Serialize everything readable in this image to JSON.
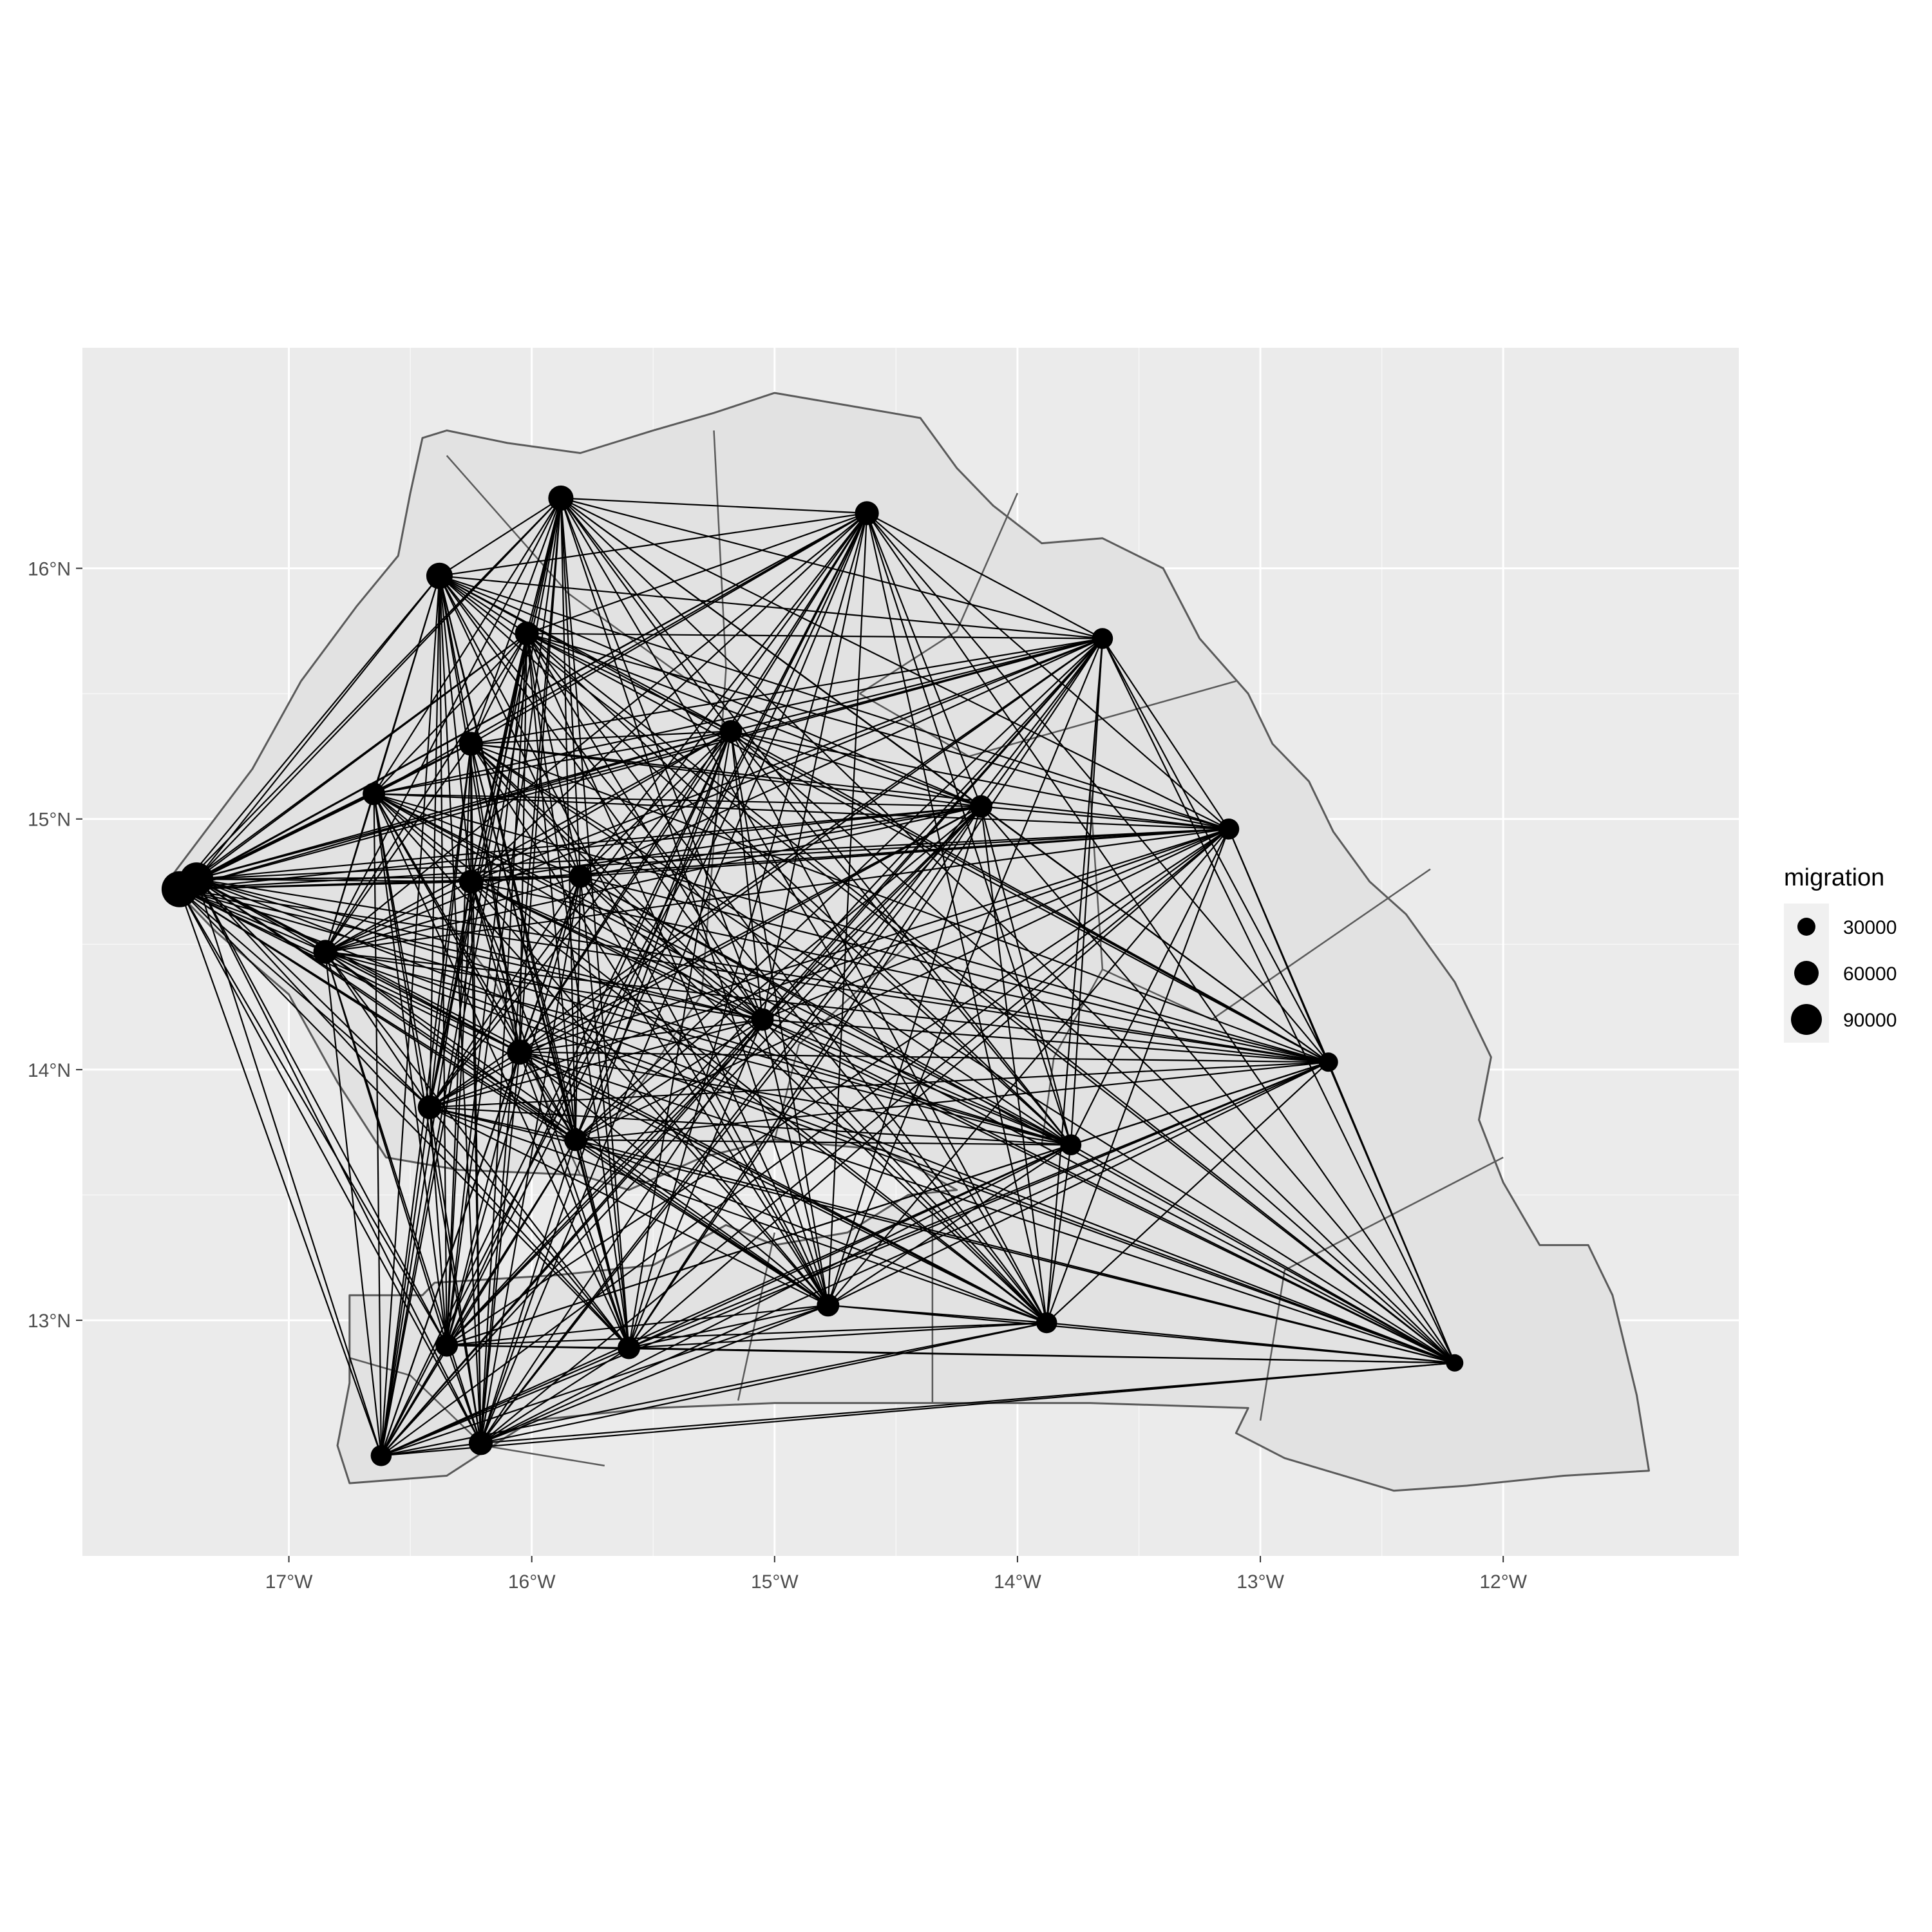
{
  "colors": {
    "panel_background": "#ebebeb",
    "gridline": "#ffffff",
    "country_fill": "#e2e2e2",
    "boundary": "#5a5a5a",
    "flow_line": "#000000",
    "node": "#000000",
    "axis_text": "#4d4d4d",
    "legend_key_background": "#f0f0f0"
  },
  "axes": {
    "x_ticks": [
      {
        "value": -17,
        "label": "17°W"
      },
      {
        "value": -16,
        "label": "16°W"
      },
      {
        "value": -15,
        "label": "15°W"
      },
      {
        "value": -14,
        "label": "14°W"
      },
      {
        "value": -13,
        "label": "13°W"
      },
      {
        "value": -12,
        "label": "12°W"
      }
    ],
    "y_ticks": [
      {
        "value": 13,
        "label": "13°N"
      },
      {
        "value": 14,
        "label": "14°N"
      },
      {
        "value": 15,
        "label": "15°N"
      },
      {
        "value": 16,
        "label": "16°N"
      }
    ],
    "xlim": [
      -17.85,
      -11.03
    ],
    "ylim": [
      12.06,
      16.88
    ]
  },
  "legend": {
    "title": "migration",
    "entries": [
      {
        "value": 30000,
        "label": "30000"
      },
      {
        "value": 60000,
        "label": "60000"
      },
      {
        "value": 90000,
        "label": "90000"
      }
    ]
  },
  "chart_data": {
    "type": "map",
    "title": "",
    "xlabel": "",
    "ylabel": "",
    "grid": true,
    "legend_position": "right",
    "size_variable": "migration",
    "country_outline": [
      [
        -17.5,
        14.75
      ],
      [
        -17.15,
        15.2
      ],
      [
        -16.95,
        15.55
      ],
      [
        -16.72,
        15.85
      ],
      [
        -16.55,
        16.05
      ],
      [
        -16.5,
        16.3
      ],
      [
        -16.45,
        16.52
      ],
      [
        -16.35,
        16.55
      ],
      [
        -16.1,
        16.5
      ],
      [
        -15.8,
        16.46
      ],
      [
        -15.5,
        16.55
      ],
      [
        -15.25,
        16.62
      ],
      [
        -15.0,
        16.7
      ],
      [
        -14.7,
        16.65
      ],
      [
        -14.4,
        16.6
      ],
      [
        -14.25,
        16.4
      ],
      [
        -14.1,
        16.25
      ],
      [
        -13.9,
        16.1
      ],
      [
        -13.65,
        16.12
      ],
      [
        -13.4,
        16.0
      ],
      [
        -13.25,
        15.72
      ],
      [
        -13.05,
        15.5
      ],
      [
        -12.95,
        15.3
      ],
      [
        -12.8,
        15.15
      ],
      [
        -12.7,
        14.95
      ],
      [
        -12.55,
        14.75
      ],
      [
        -12.4,
        14.62
      ],
      [
        -12.2,
        14.35
      ],
      [
        -12.05,
        14.05
      ],
      [
        -12.1,
        13.8
      ],
      [
        -12.0,
        13.55
      ],
      [
        -11.85,
        13.3
      ],
      [
        -11.65,
        13.3
      ],
      [
        -11.55,
        13.1
      ],
      [
        -11.5,
        12.9
      ],
      [
        -11.45,
        12.7
      ],
      [
        -11.4,
        12.4
      ],
      [
        -11.75,
        12.38
      ],
      [
        -12.15,
        12.34
      ],
      [
        -12.45,
        12.32
      ],
      [
        -12.9,
        12.45
      ],
      [
        -13.1,
        12.55
      ],
      [
        -13.05,
        12.65
      ],
      [
        -13.7,
        12.67
      ],
      [
        -14.3,
        12.67
      ],
      [
        -15.0,
        12.67
      ],
      [
        -15.5,
        12.65
      ],
      [
        -16.0,
        12.6
      ],
      [
        -16.35,
        12.38
      ],
      [
        -16.75,
        12.35
      ],
      [
        -16.8,
        12.5
      ],
      [
        -16.75,
        12.75
      ],
      [
        -16.75,
        13.1
      ],
      [
        -16.45,
        13.1
      ],
      [
        -16.4,
        13.15
      ],
      [
        -15.9,
        13.18
      ],
      [
        -15.5,
        13.22
      ],
      [
        -15.2,
        13.38
      ],
      [
        -15.0,
        13.3
      ],
      [
        -14.7,
        13.35
      ],
      [
        -14.45,
        13.5
      ],
      [
        -14.25,
        13.52
      ],
      [
        -14.55,
        13.68
      ],
      [
        -15.0,
        13.72
      ],
      [
        -15.3,
        13.65
      ],
      [
        -15.6,
        13.52
      ],
      [
        -15.8,
        13.58
      ],
      [
        -16.3,
        13.6
      ],
      [
        -16.6,
        13.65
      ],
      [
        -16.8,
        13.95
      ],
      [
        -17.0,
        14.3
      ],
      [
        -17.3,
        14.55
      ],
      [
        -17.5,
        14.75
      ]
    ],
    "admin_boundaries": [
      [
        [
          -16.35,
          16.45
        ],
        [
          -15.85,
          15.9
        ],
        [
          -15.35,
          15.55
        ]
      ],
      [
        [
          -15.25,
          16.55
        ],
        [
          -15.2,
          15.6
        ],
        [
          -15.25,
          14.9
        ]
      ],
      [
        [
          -14.0,
          16.3
        ],
        [
          -14.25,
          15.75
        ],
        [
          -14.65,
          15.5
        ]
      ],
      [
        [
          -14.65,
          15.5
        ],
        [
          -14.2,
          15.25
        ],
        [
          -13.1,
          15.55
        ]
      ],
      [
        [
          -13.65,
          15.7
        ],
        [
          -13.7,
          15.1
        ],
        [
          -13.65,
          14.4
        ],
        [
          -13.2,
          14.2
        ],
        [
          -12.3,
          14.8
        ]
      ],
      [
        [
          -13.65,
          14.4
        ],
        [
          -13.85,
          14.05
        ],
        [
          -13.9,
          13.7
        ]
      ],
      [
        [
          -15.25,
          14.9
        ],
        [
          -15.3,
          14.3
        ],
        [
          -15.65,
          13.8
        ]
      ],
      [
        [
          -14.45,
          14.5
        ],
        [
          -14.9,
          14.1
        ],
        [
          -15.0,
          13.72
        ]
      ],
      [
        [
          -16.35,
          14.6
        ],
        [
          -16.15,
          14.35
        ],
        [
          -16.0,
          14.0
        ],
        [
          -15.8,
          13.58
        ]
      ],
      [
        [
          -15.0,
          13.35
        ],
        [
          -15.15,
          12.68
        ]
      ],
      [
        [
          -14.35,
          13.45
        ],
        [
          -14.35,
          12.67
        ]
      ],
      [
        [
          -12.0,
          13.65
        ],
        [
          -12.9,
          13.2
        ],
        [
          -13.0,
          12.6
        ]
      ],
      [
        [
          -16.75,
          12.85
        ],
        [
          -16.5,
          12.78
        ],
        [
          -16.2,
          12.5
        ],
        [
          -15.7,
          12.42
        ]
      ]
    ],
    "nodes": [
      {
        "lon": -17.45,
        "lat": 14.72,
        "migration": 95000
      },
      {
        "lon": -17.38,
        "lat": 14.76,
        "migration": 80000
      },
      {
        "lon": -15.88,
        "lat": 16.28,
        "migration": 40000
      },
      {
        "lon": -14.62,
        "lat": 16.22,
        "migration": 35000
      },
      {
        "lon": -16.38,
        "lat": 15.97,
        "migration": 45000
      },
      {
        "lon": -16.02,
        "lat": 15.74,
        "migration": 35000
      },
      {
        "lon": -13.65,
        "lat": 15.72,
        "migration": 25000
      },
      {
        "lon": -16.25,
        "lat": 15.3,
        "migration": 35000
      },
      {
        "lon": -15.18,
        "lat": 15.35,
        "migration": 30000
      },
      {
        "lon": -16.65,
        "lat": 15.1,
        "migration": 30000
      },
      {
        "lon": -14.15,
        "lat": 15.05,
        "migration": 30000
      },
      {
        "lon": -13.13,
        "lat": 14.96,
        "migration": 25000
      },
      {
        "lon": -16.85,
        "lat": 14.47,
        "migration": 35000
      },
      {
        "lon": -16.25,
        "lat": 14.75,
        "migration": 35000
      },
      {
        "lon": -15.8,
        "lat": 14.77,
        "migration": 30000
      },
      {
        "lon": -15.05,
        "lat": 14.2,
        "migration": 30000
      },
      {
        "lon": -16.05,
        "lat": 14.07,
        "migration": 40000
      },
      {
        "lon": -16.42,
        "lat": 13.85,
        "migration": 35000
      },
      {
        "lon": -15.82,
        "lat": 13.72,
        "migration": 30000
      },
      {
        "lon": -13.78,
        "lat": 13.7,
        "migration": 25000
      },
      {
        "lon": -12.72,
        "lat": 14.03,
        "migration": 20000
      },
      {
        "lon": -14.78,
        "lat": 13.06,
        "migration": 30000
      },
      {
        "lon": -13.88,
        "lat": 12.99,
        "migration": 25000
      },
      {
        "lon": -15.6,
        "lat": 12.89,
        "migration": 30000
      },
      {
        "lon": -12.2,
        "lat": 12.83,
        "migration": 15000
      },
      {
        "lon": -16.35,
        "lat": 12.9,
        "migration": 30000
      },
      {
        "lon": -16.62,
        "lat": 12.46,
        "migration": 25000
      },
      {
        "lon": -16.21,
        "lat": 12.51,
        "migration": 35000
      }
    ],
    "flows": "all-pairs"
  }
}
